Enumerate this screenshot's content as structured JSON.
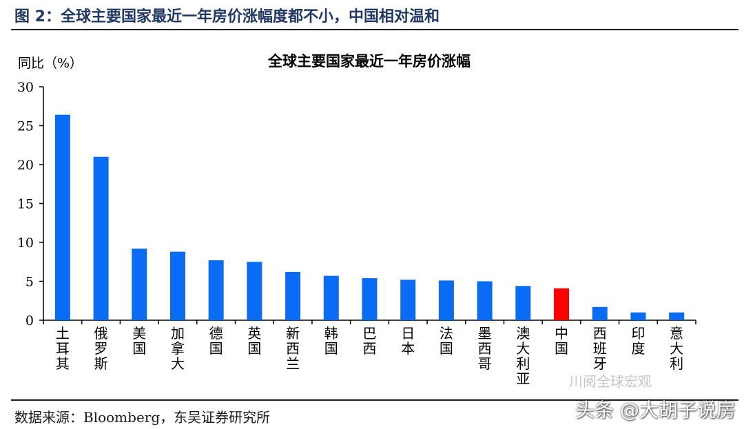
{
  "header": {
    "figure_title": "图 2：全球主要国家最近一年房价涨幅度都不小，中国相对温和"
  },
  "chart_data": {
    "type": "bar",
    "title": "全球主要国家最近一年房价涨幅",
    "ylabel": "同比（%）",
    "xlabel": "",
    "ylim": [
      0,
      30
    ],
    "yticks": [
      0,
      5,
      10,
      15,
      20,
      25,
      30
    ],
    "grid": false,
    "categories": [
      "土耳其",
      "俄罗斯",
      "美国",
      "加拿大",
      "德国",
      "英国",
      "新西兰",
      "韩国",
      "巴西",
      "日本",
      "法国",
      "墨西哥",
      "澳大利亚",
      "中国",
      "西班牙",
      "印度",
      "意大利"
    ],
    "values": [
      26.4,
      21.0,
      9.2,
      8.8,
      7.7,
      7.5,
      6.2,
      5.7,
      5.4,
      5.2,
      5.1,
      5.0,
      4.4,
      4.1,
      1.7,
      1.0,
      1.0
    ],
    "colors": {
      "default": "#0a6cf5",
      "highlight": "#ff0000",
      "highlight_category": "中国"
    }
  },
  "footer": {
    "source": "数据来源：Bloomberg，东吴证券研究所"
  },
  "watermark": {
    "wechat": "川阅全球宏观",
    "toutiao": "头条 @大胡子说房"
  }
}
